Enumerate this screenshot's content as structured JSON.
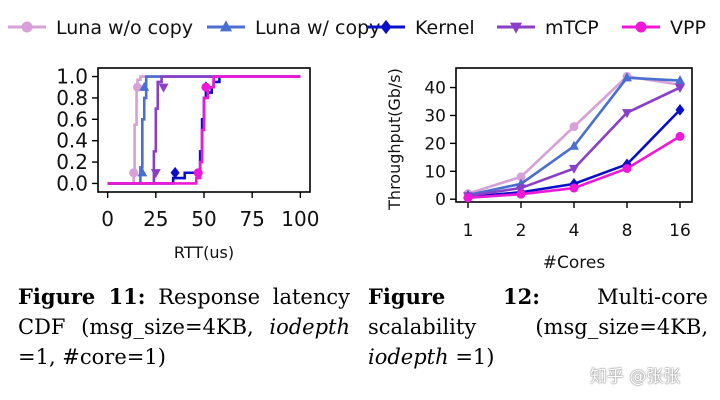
{
  "legend": {
    "entries": [
      {
        "label": "Luna w/o copy",
        "color": "#d8a0d8",
        "marker": "circle"
      },
      {
        "label": "Luna w/ copy",
        "color": "#4a6fd0",
        "marker": "triangle-up"
      },
      {
        "label": "Kernel",
        "color": "#0a10c8",
        "marker": "diamond"
      },
      {
        "label": "mTCP",
        "color": "#8a3fc8",
        "marker": "triangle-down"
      },
      {
        "label": "VPP",
        "color": "#f018d8",
        "marker": "circle"
      }
    ]
  },
  "chart_data": [
    {
      "type": "line",
      "title": "",
      "xlabel": "RTT(us)",
      "ylabel": "",
      "xlim": [
        -5,
        105
      ],
      "ylim": [
        -0.08,
        1.08
      ],
      "xticks": [
        "0",
        "25",
        "50",
        "75",
        "100"
      ],
      "xtick_values": [
        0,
        25,
        50,
        75,
        100
      ],
      "yticks": [
        "0.0",
        "0.2",
        "0.4",
        "0.6",
        "0.8",
        "1.0"
      ],
      "ytick_values": [
        0.0,
        0.2,
        0.4,
        0.6,
        0.8,
        1.0
      ],
      "series": [
        {
          "name": "Luna w/o copy",
          "x": [
            0,
            13,
            13.5,
            14,
            15,
            15.5,
            17,
            100
          ],
          "y": [
            0,
            0,
            0.1,
            0.55,
            0.9,
            0.97,
            1.0,
            1.0
          ],
          "marker_x": [
            13.5,
            15.5
          ],
          "marker_y": [
            0.1,
            0.9
          ]
        },
        {
          "name": "Luna w/ copy",
          "x": [
            0,
            16.5,
            17,
            18,
            19,
            20,
            100
          ],
          "y": [
            0,
            0,
            0.15,
            0.6,
            0.8,
            1.0,
            1.0
          ],
          "marker_x": [
            18,
            19
          ],
          "marker_y": [
            0.1,
            0.9
          ]
        },
        {
          "name": "Kernel",
          "x": [
            0,
            33,
            34,
            40,
            47,
            48,
            49,
            50,
            51,
            54,
            55,
            58,
            100
          ],
          "y": [
            0,
            0,
            0.05,
            0.1,
            0.12,
            0.3,
            0.6,
            0.8,
            0.85,
            0.9,
            0.95,
            1.0,
            1.0
          ],
          "marker_x": [
            35,
            51
          ],
          "marker_y": [
            0.1,
            0.9
          ]
        },
        {
          "name": "mTCP",
          "x": [
            0,
            23,
            24,
            25,
            26,
            28,
            100
          ],
          "y": [
            0,
            0,
            0.3,
            0.7,
            0.95,
            1.0,
            1.0
          ],
          "marker_x": [
            25,
            29
          ],
          "marker_y": [
            0.1,
            0.9
          ]
        },
        {
          "name": "VPP",
          "x": [
            0,
            45,
            46,
            48,
            49,
            50,
            52,
            55,
            100
          ],
          "y": [
            0,
            0,
            0.05,
            0.2,
            0.5,
            0.8,
            0.9,
            1.0,
            1.0
          ],
          "marker_x": [
            47,
            51
          ],
          "marker_y": [
            0.1,
            0.9
          ]
        }
      ]
    },
    {
      "type": "line",
      "title": "",
      "xlabel": "#Cores",
      "ylabel": "Throughput(Gb/s)",
      "categories": [
        "1",
        "2",
        "4",
        "8",
        "16"
      ],
      "ylim": [
        -1,
        47
      ],
      "yticks": [
        "0",
        "10",
        "20",
        "30",
        "40"
      ],
      "ytick_values": [
        0,
        10,
        20,
        30,
        40
      ],
      "series": [
        {
          "name": "Luna w/o copy",
          "values": [
            2,
            8,
            26,
            44,
            41
          ]
        },
        {
          "name": "Luna w/ copy",
          "values": [
            1.5,
            5.5,
            19,
            43.5,
            42.5
          ]
        },
        {
          "name": "Kernel",
          "values": [
            0.8,
            2.5,
            5.5,
            12.5,
            32
          ]
        },
        {
          "name": "mTCP",
          "values": [
            1.2,
            4,
            11,
            31,
            40
          ]
        },
        {
          "name": "VPP",
          "values": [
            0.5,
            1.8,
            4,
            11,
            22.5
          ]
        }
      ]
    }
  ],
  "captions": {
    "fig11": {
      "label": "Figure 11:",
      "text_1": " Response latency CDF (msg_size=4KB, ",
      "italic": "iodepth",
      "text_2": " =1, #core=1)"
    },
    "fig12": {
      "label": "Figure 12:",
      "text_1": " Multi-core scalability (msg_size=4KB, ",
      "italic": "iodepth",
      "text_2": " =1)"
    }
  },
  "watermark": "知乎 @张张"
}
